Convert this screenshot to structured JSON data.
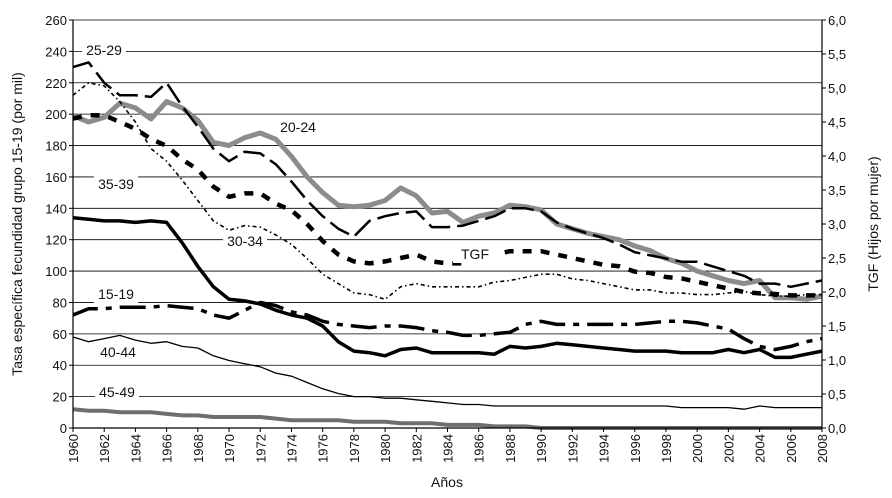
{
  "chart_data": {
    "type": "line",
    "title": "",
    "xlabel": "Años",
    "ylabel": "Tasa específica fecundidad grupo 15-19 (por mil)",
    "ylabel_right": "TGF (Hijos por mujer)",
    "xlim": [
      1960,
      2008
    ],
    "ylim": [
      0,
      260
    ],
    "ylim_right": [
      0,
      6
    ],
    "grid": "horizontal",
    "legend": "none",
    "x_tick_labels": [
      "1960",
      "1962",
      "1964",
      "1966",
      "1968",
      "1970",
      "1972",
      "1974",
      "1976",
      "1978",
      "1980",
      "1982",
      "1984",
      "1986",
      "1988",
      "1990",
      "1992",
      "1994",
      "1996",
      "1998",
      "2000",
      "2002",
      "2004",
      "2006",
      "2008"
    ],
    "y_tick_labels": [
      "0",
      "20",
      "40",
      "60",
      "80",
      "100",
      "120",
      "140",
      "160",
      "180",
      "200",
      "220",
      "240",
      "260"
    ],
    "y_right_tick_labels": [
      "0,0",
      "0,5",
      "1,0",
      "1,5",
      "2,0",
      "2,5",
      "3,0",
      "3,5",
      "4,0",
      "4,5",
      "5,0",
      "5,5",
      "6,0"
    ],
    "x": [
      1960,
      1961,
      1962,
      1963,
      1964,
      1965,
      1966,
      1967,
      1968,
      1969,
      1970,
      1971,
      1972,
      1973,
      1974,
      1975,
      1976,
      1977,
      1978,
      1979,
      1980,
      1981,
      1982,
      1983,
      1984,
      1985,
      1986,
      1987,
      1988,
      1989,
      1990,
      1991,
      1992,
      1993,
      1994,
      1995,
      1996,
      1997,
      1998,
      1999,
      2000,
      2001,
      2002,
      2003,
      2004,
      2005,
      2006,
      2007,
      2008
    ],
    "series": [
      {
        "name": "15-19",
        "color": "#000000",
        "values": [
          72,
          76,
          76,
          77,
          77,
          77,
          78,
          77,
          76,
          72,
          70,
          75,
          80,
          78,
          74,
          72,
          68,
          66,
          65,
          64,
          65,
          65,
          64,
          62,
          61,
          59,
          59,
          60,
          61,
          66,
          68,
          66,
          66,
          66,
          66,
          66,
          66,
          67,
          68,
          68,
          67,
          65,
          63,
          57,
          52,
          50,
          52,
          55,
          57
        ]
      },
      {
        "name": "20-24",
        "color": "#8c8c8c",
        "values": [
          199,
          195,
          198,
          207,
          204,
          197,
          208,
          204,
          196,
          182,
          180,
          185,
          188,
          184,
          173,
          160,
          150,
          142,
          141,
          142,
          145,
          153,
          148,
          137,
          138,
          131,
          135,
          137,
          142,
          141,
          139,
          130,
          127,
          124,
          122,
          120,
          116,
          113,
          108,
          105,
          100,
          97,
          94,
          92,
          94,
          83,
          83,
          82,
          84
        ]
      },
      {
        "name": "25-29",
        "color": "#000000",
        "values": [
          230,
          233,
          220,
          212,
          212,
          211,
          220,
          205,
          192,
          178,
          170,
          176,
          175,
          168,
          157,
          145,
          135,
          127,
          122,
          132,
          135,
          137,
          138,
          128,
          128,
          129,
          132,
          135,
          140,
          140,
          138,
          131,
          127,
          124,
          121,
          117,
          112,
          110,
          108,
          106,
          106,
          103,
          100,
          97,
          92,
          92,
          90,
          92,
          94
        ]
      },
      {
        "name": "30-34",
        "color": "#000000",
        "values": [
          212,
          220,
          218,
          208,
          195,
          178,
          170,
          158,
          145,
          132,
          126,
          129,
          128,
          123,
          117,
          108,
          98,
          92,
          86,
          85,
          82,
          90,
          92,
          90,
          90,
          90,
          90,
          93,
          94,
          96,
          98,
          98,
          95,
          94,
          92,
          90,
          88,
          88,
          86,
          86,
          85,
          85,
          86,
          87,
          85,
          84,
          84,
          85,
          85
        ]
      },
      {
        "name": "35-39",
        "color": "#000000",
        "values": [
          134,
          133,
          132,
          132,
          131,
          132,
          131,
          118,
          103,
          90,
          82,
          81,
          79,
          75,
          72,
          70,
          65,
          55,
          49,
          48,
          46,
          50,
          51,
          48,
          48,
          48,
          48,
          47,
          52,
          51,
          52,
          54,
          53,
          52,
          51,
          50,
          49,
          49,
          49,
          48,
          48,
          48,
          50,
          48,
          50,
          45,
          45,
          47,
          49
        ]
      },
      {
        "name": "40-44",
        "color": "#000000",
        "values": [
          58,
          55,
          57,
          59,
          56,
          54,
          55,
          52,
          51,
          46,
          43,
          41,
          39,
          35,
          33,
          29,
          25,
          22,
          20,
          20,
          19,
          19,
          18,
          17,
          16,
          15,
          15,
          14,
          14,
          14,
          14,
          14,
          14,
          14,
          14,
          14,
          14,
          14,
          14,
          13,
          13,
          13,
          13,
          12,
          14,
          13,
          13,
          13,
          13
        ]
      },
      {
        "name": "45-49",
        "color": "#6e6e6e",
        "values": [
          12,
          11,
          11,
          10,
          10,
          10,
          9,
          8,
          8,
          7,
          7,
          7,
          7,
          6,
          5,
          5,
          5,
          5,
          4,
          4,
          4,
          3,
          3,
          3,
          2,
          2,
          2,
          1,
          1,
          1,
          0,
          0,
          0,
          0,
          0,
          0,
          0,
          0,
          0,
          0,
          0,
          0,
          0,
          0,
          0,
          0,
          0,
          0,
          0
        ]
      },
      {
        "name": "TGF",
        "color": "#000000",
        "axis": "right",
        "values": [
          4.55,
          4.6,
          4.6,
          4.5,
          4.4,
          4.25,
          4.15,
          3.95,
          3.8,
          3.55,
          3.4,
          3.45,
          3.45,
          3.3,
          3.2,
          3.0,
          2.75,
          2.55,
          2.45,
          2.42,
          2.45,
          2.5,
          2.55,
          2.45,
          2.42,
          2.42,
          2.5,
          2.55,
          2.6,
          2.6,
          2.6,
          2.55,
          2.5,
          2.45,
          2.4,
          2.38,
          2.3,
          2.28,
          2.22,
          2.2,
          2.15,
          2.1,
          2.05,
          2.0,
          1.98,
          1.97,
          1.95,
          1.95,
          1.95
        ]
      }
    ]
  }
}
